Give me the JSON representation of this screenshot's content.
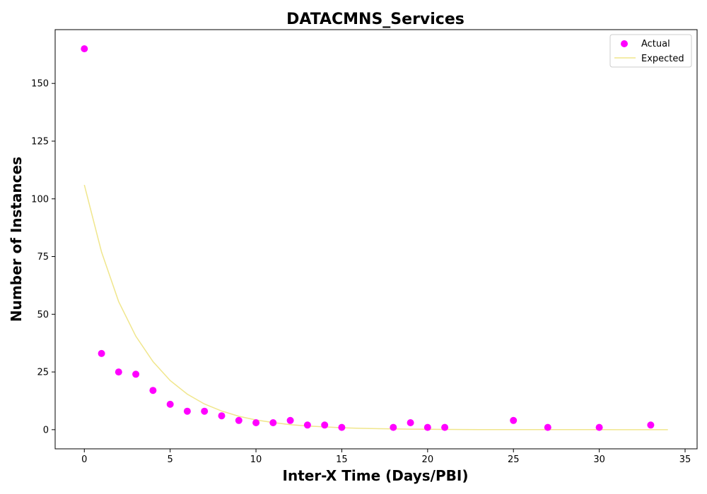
{
  "chart_data": {
    "type": "scatter",
    "title": "DATACMNS_Services",
    "xlabel": "Inter-X Time (Days/PBI)",
    "ylabel": "Number of Instances",
    "xlim": [
      -1.7,
      35.7
    ],
    "ylim": [
      -8.3,
      173.3
    ],
    "xticks": [
      0,
      5,
      10,
      15,
      20,
      25,
      30,
      35
    ],
    "yticks": [
      0,
      25,
      50,
      75,
      100,
      125,
      150
    ],
    "grid": false,
    "legend_position": "top-right",
    "series": [
      {
        "name": "Actual",
        "kind": "scatter",
        "color": "#ff00ff",
        "points": [
          [
            0,
            165
          ],
          [
            1,
            33
          ],
          [
            2,
            25
          ],
          [
            3,
            24
          ],
          [
            4,
            17
          ],
          [
            5,
            11
          ],
          [
            6,
            8
          ],
          [
            7,
            8
          ],
          [
            8,
            6
          ],
          [
            9,
            4
          ],
          [
            10,
            3
          ],
          [
            11,
            3
          ],
          [
            12,
            4
          ],
          [
            13,
            2
          ],
          [
            14,
            2
          ],
          [
            15,
            1
          ],
          [
            18,
            1
          ],
          [
            19,
            3
          ],
          [
            20,
            1
          ],
          [
            21,
            1
          ],
          [
            25,
            4
          ],
          [
            27,
            1
          ],
          [
            30,
            1
          ],
          [
            33,
            2
          ]
        ]
      },
      {
        "name": "Expected",
        "kind": "line",
        "color": "#f0e68c",
        "points": [
          [
            0,
            106
          ],
          [
            1,
            77
          ],
          [
            2,
            55.5
          ],
          [
            3,
            40.5
          ],
          [
            4,
            29.5
          ],
          [
            5,
            21.3
          ],
          [
            6,
            15.4
          ],
          [
            7,
            11.1
          ],
          [
            8,
            8.1
          ],
          [
            9,
            5.8
          ],
          [
            10,
            4.2
          ],
          [
            11,
            3.1
          ],
          [
            12,
            2.2
          ],
          [
            13,
            1.6
          ],
          [
            14,
            1.2
          ],
          [
            15,
            0.85
          ],
          [
            16,
            0.6
          ],
          [
            17,
            0.45
          ],
          [
            18,
            0.32
          ],
          [
            19,
            0.23
          ],
          [
            20,
            0.17
          ],
          [
            21,
            0.12
          ],
          [
            22,
            0.09
          ],
          [
            23,
            0.06
          ],
          [
            24,
            0.05
          ],
          [
            25,
            0.03
          ],
          [
            26,
            0.02
          ],
          [
            27,
            0.02
          ],
          [
            28,
            0.01
          ],
          [
            29,
            0.01
          ],
          [
            30,
            0.01
          ],
          [
            31,
            0
          ],
          [
            32,
            0
          ],
          [
            33,
            0
          ],
          [
            34,
            0
          ]
        ]
      }
    ]
  }
}
